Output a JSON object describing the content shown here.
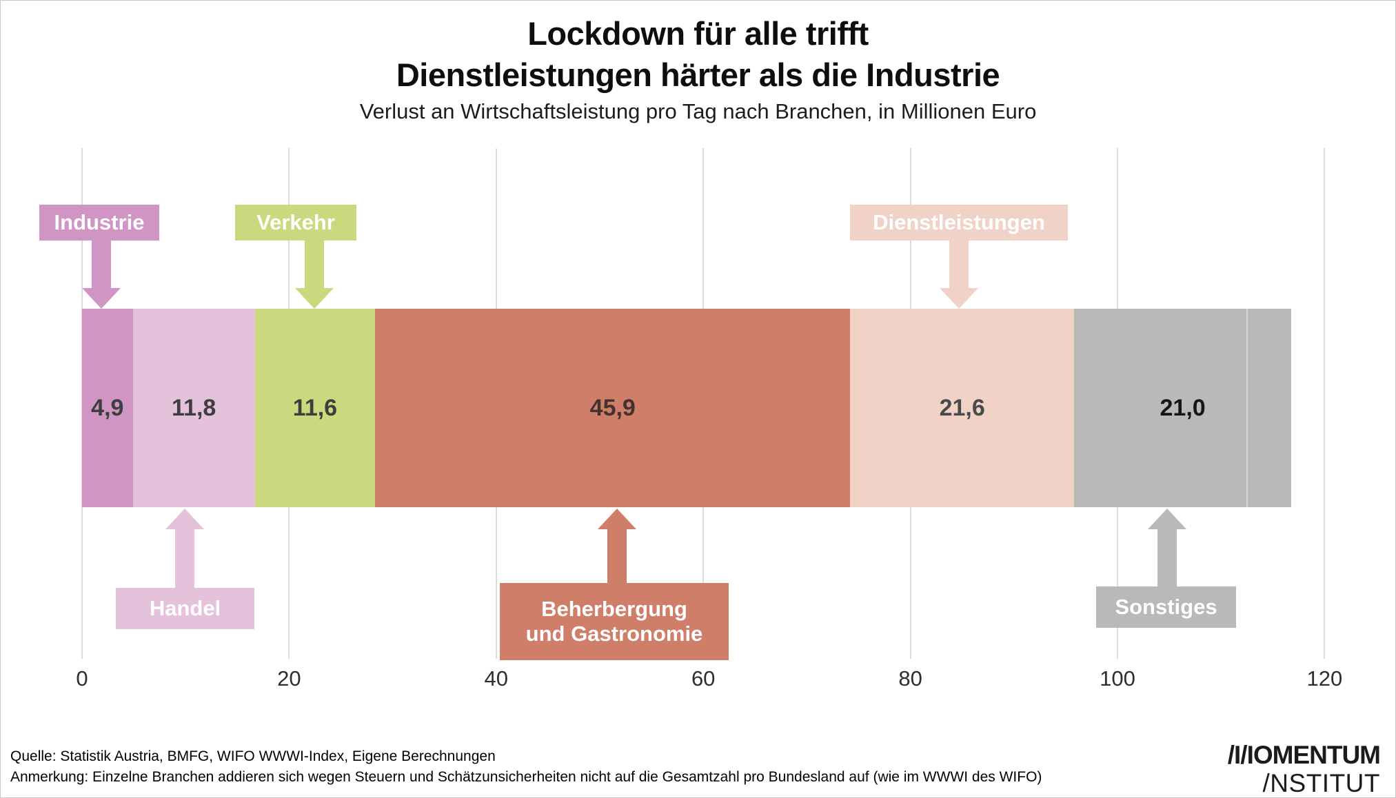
{
  "title": {
    "line1": "Lockdown für alle trifft",
    "line2": "Dienstleistungen härter als die Industrie"
  },
  "subtitle": "Verlust an Wirtschaftsleistung pro Tag nach Branchen, in Millionen Euro",
  "chart_data": {
    "type": "bar",
    "variant": "horizontal-stacked-single-bar",
    "title": "Lockdown für alle trifft Dienstleistungen härter als die Industrie",
    "subtitle": "Verlust an Wirtschaftsleistung pro Tag nach Branchen, in Millionen Euro",
    "unit": "Millionen Euro pro Tag",
    "grid": true,
    "legend_position": "none",
    "axis": {
      "range": [
        0,
        120
      ],
      "ticks": [
        0,
        20,
        40,
        60,
        80,
        100,
        120
      ]
    },
    "segments": [
      {
        "label": "Industrie",
        "callout_label": "Industrie",
        "value": 4.9,
        "value_label": "4,9",
        "color": "#d095c4",
        "value_color": "#3e3e3e",
        "callout_side": "top"
      },
      {
        "label": "Handel",
        "callout_label": "Handel",
        "value": 11.8,
        "value_label": "11,8",
        "color": "#e5c2db",
        "value_color": "#3e3e3e",
        "callout_side": "bottom"
      },
      {
        "label": "Verkehr",
        "callout_label": "Verkehr",
        "value": 11.6,
        "value_label": "11,6",
        "color": "#cbd87e",
        "value_color": "#3e3e3e",
        "callout_side": "top"
      },
      {
        "label": "Beherbergung und Gastronomie",
        "callout_label": "Beherbergung\nund Gastronomie",
        "value": 45.9,
        "value_label": "45,9",
        "color": "#cf7f69",
        "value_color": "#43332e",
        "callout_side": "bottom"
      },
      {
        "label": "Dienstleistungen",
        "callout_label": "Dienstleistungen",
        "value": 21.6,
        "value_label": "21,6",
        "color": "#f0d3c6",
        "value_color": "#4a4a4a",
        "callout_side": "top"
      },
      {
        "label": "Sonstiges",
        "callout_label": "Sonstiges",
        "value": 21.0,
        "value_label": "21,0",
        "color": "#b9b9b9",
        "value_color": "#161616",
        "callout_side": "bottom"
      }
    ]
  },
  "footer": {
    "source": "Quelle: Statistik Austria, BMFG, WIFO WWWI-Index, Eigene Berechnungen",
    "note": "Anmerkung: Einzelne Branchen addieren sich wegen Steuern und Schätzunsicherheiten nicht auf die Gesamtzahl pro Bundesland auf (wie im WWWI des WIFO)"
  },
  "logo": {
    "line1": "/I/IOMENTUM",
    "line2": "/NSTITUT"
  }
}
